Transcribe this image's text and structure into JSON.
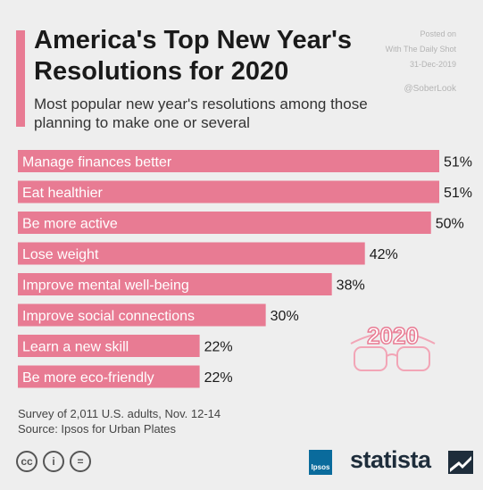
{
  "header": {
    "title": "America's Top New Year's Resolutions for 2020",
    "subtitle": "Most popular new year's resolutions among those planning to make one or several"
  },
  "watermark": {
    "line1": "Posted on",
    "line2": "With The Daily Shot",
    "line3": "31-Dec-2019",
    "handle": "@SoberLook"
  },
  "chart_data": {
    "type": "bar",
    "orientation": "horizontal",
    "categories": [
      "Manage finances better",
      "Eat healthier",
      "Be more active",
      "Lose weight",
      "Improve mental well-being",
      "Improve social connections",
      "Learn a new skill",
      "Be more eco-friendly"
    ],
    "values": [
      51,
      51,
      50,
      42,
      38,
      30,
      22,
      22
    ],
    "value_suffix": "%",
    "bar_color": "#e87b93",
    "grid": false,
    "legend": "none"
  },
  "decoration": {
    "text": "2020"
  },
  "footer": {
    "survey": "Survey of 2,011 U.S. adults, Nov. 12-14",
    "source": "Source: Ipsos for Urban Plates",
    "cc_icons": [
      "cc-icon",
      "by-icon",
      "nd-icon"
    ],
    "cc_symbols": [
      "cc",
      "i",
      "="
    ],
    "ipsos_label": "Ipsos",
    "brand": "statista"
  }
}
